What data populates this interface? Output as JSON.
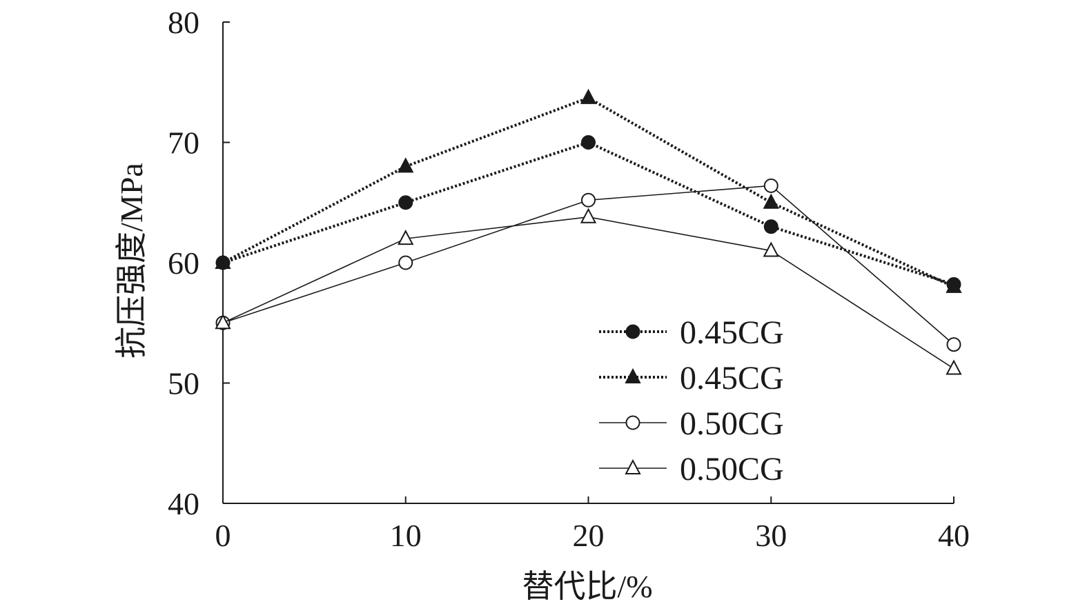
{
  "chart_data": {
    "type": "line",
    "title": "",
    "xlabel": "替代比/%",
    "ylabel": "抗压强度/MPa",
    "x": [
      0,
      10,
      20,
      30,
      40
    ],
    "xlim": [
      0,
      40
    ],
    "ylim": [
      40,
      80
    ],
    "xticks": [
      "0",
      "10",
      "20",
      "30",
      "40"
    ],
    "yticks": [
      "40",
      "50",
      "60",
      "70",
      "80"
    ],
    "grid": false,
    "legend_position": "bottom-right",
    "series": [
      {
        "name": "0.45CG",
        "values": [
          60,
          65,
          70,
          63,
          58.2
        ],
        "marker": "circle-filled",
        "line": "dotted"
      },
      {
        "name": "0.45CG",
        "values": [
          60,
          68,
          73.7,
          65,
          58
        ],
        "marker": "triangle-filled",
        "line": "dotted"
      },
      {
        "name": "0.50CG",
        "values": [
          55,
          60,
          65.2,
          66.4,
          53.2
        ],
        "marker": "circle-open",
        "line": "solid"
      },
      {
        "name": "0.50CG",
        "values": [
          55,
          62,
          63.8,
          61,
          51.2
        ],
        "marker": "triangle-open",
        "line": "solid"
      }
    ],
    "colors": {
      "line": "#1a1a1a",
      "background": "#ffffff"
    }
  }
}
